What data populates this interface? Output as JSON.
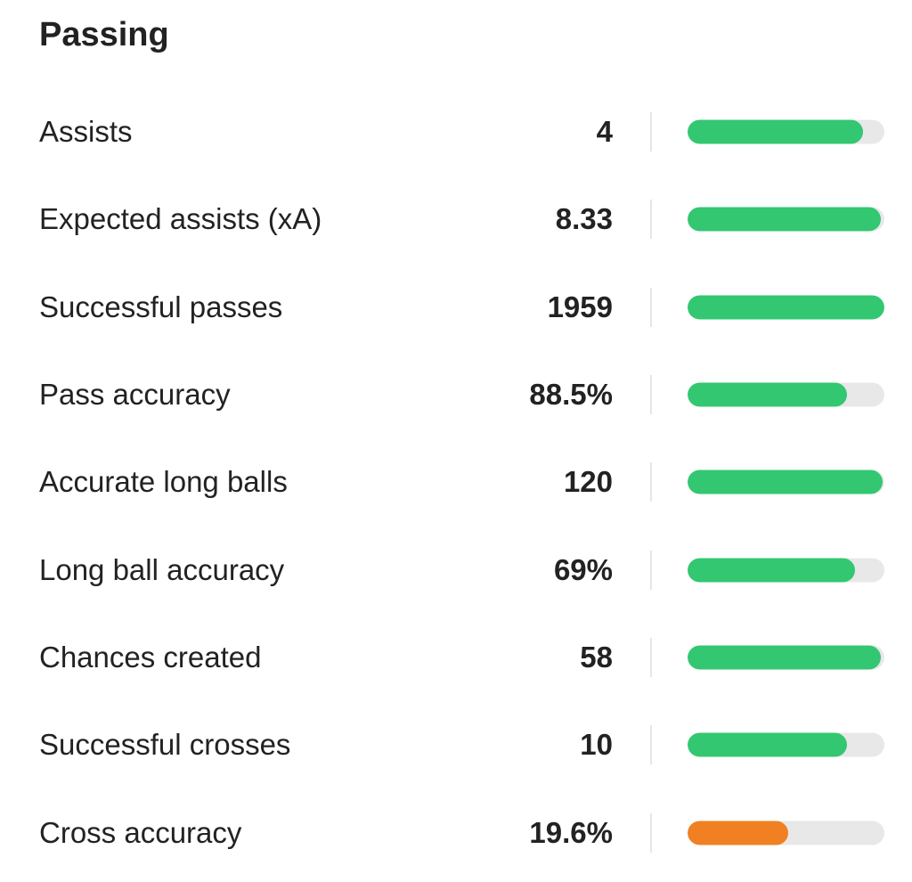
{
  "section": {
    "title": "Passing"
  },
  "colors": {
    "good": "#33c771",
    "poor": "#f08022",
    "track": "#e8e8e8"
  },
  "stats": [
    {
      "label": "Assists",
      "value": "4",
      "percentile": 0.89,
      "rating": "good"
    },
    {
      "label": "Expected assists (xA)",
      "value": "8.33",
      "percentile": 0.98,
      "rating": "good"
    },
    {
      "label": "Successful passes",
      "value": "1959",
      "percentile": 1.0,
      "rating": "good"
    },
    {
      "label": "Pass accuracy",
      "value": "88.5%",
      "percentile": 0.81,
      "rating": "good"
    },
    {
      "label": "Accurate long balls",
      "value": "120",
      "percentile": 0.99,
      "rating": "good"
    },
    {
      "label": "Long ball accuracy",
      "value": "69%",
      "percentile": 0.85,
      "rating": "good"
    },
    {
      "label": "Chances created",
      "value": "58",
      "percentile": 0.98,
      "rating": "good"
    },
    {
      "label": "Successful crosses",
      "value": "10",
      "percentile": 0.81,
      "rating": "good"
    },
    {
      "label": "Cross accuracy",
      "value": "19.6%",
      "percentile": 0.51,
      "rating": "poor"
    }
  ]
}
